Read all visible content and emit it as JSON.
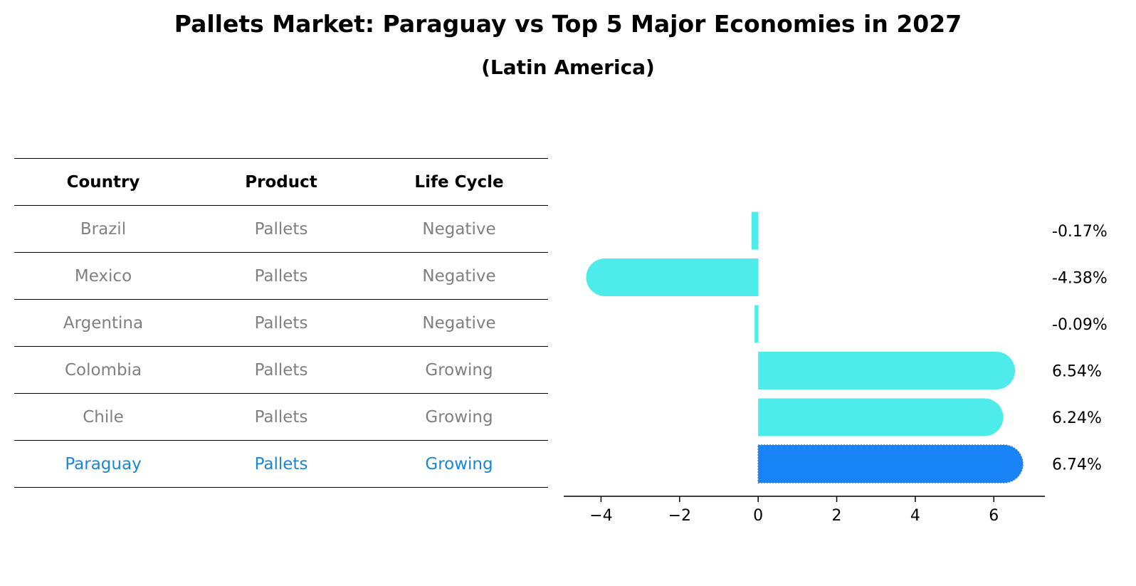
{
  "chart_data": {
    "type": "bar",
    "orientation": "horizontal",
    "title": "Pallets Market: Paraguay vs Top 5 Major Economies in 2027",
    "subtitle": "(Latin America)",
    "table": {
      "headers": [
        "Country",
        "Product",
        "Life Cycle"
      ],
      "rows": [
        {
          "country": "Brazil",
          "product": "Pallets",
          "life_cycle": "Negative"
        },
        {
          "country": "Mexico",
          "product": "Pallets",
          "life_cycle": "Negative"
        },
        {
          "country": "Argentina",
          "product": "Pallets",
          "life_cycle": "Negative"
        },
        {
          "country": "Colombia",
          "product": "Pallets",
          "life_cycle": "Growing"
        },
        {
          "country": "Chile",
          "product": "Pallets",
          "life_cycle": "Growing"
        },
        {
          "country": "Paraguay",
          "product": "Pallets",
          "life_cycle": "Growing"
        }
      ]
    },
    "categories": [
      "Brazil",
      "Mexico",
      "Argentina",
      "Colombia",
      "Chile",
      "Paraguay"
    ],
    "values": [
      -0.17,
      -4.38,
      -0.09,
      6.54,
      6.24,
      6.74
    ],
    "value_labels": [
      "-0.17%",
      "-4.38%",
      "-0.09%",
      "6.54%",
      "6.24%",
      "6.74%"
    ],
    "highlight": "Paraguay",
    "xlim": [
      -4.95,
      7.3
    ],
    "xticks": [
      -4,
      -2,
      0,
      2,
      4,
      6
    ],
    "xtick_labels": [
      "−4",
      "−2",
      "0",
      "2",
      "4",
      "6"
    ],
    "grid": false,
    "colors": {
      "bar": "#4deceb",
      "highlight_bar": "#1884f5",
      "highlight_text": "#1a86d6",
      "muted_text": "#808080"
    }
  }
}
